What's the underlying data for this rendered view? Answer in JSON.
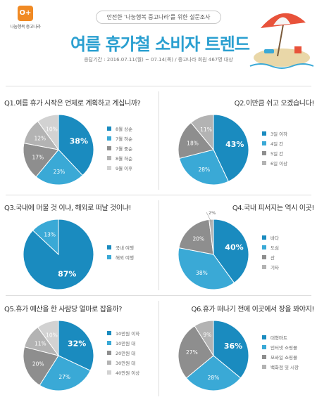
{
  "header": {
    "logo_text": "나눔행복 중고나라",
    "subtitle": "안전한 '나눔행복 중고나라'를 위한 설문조사",
    "title": "여름 휴가철 소비자 트렌드",
    "survey_info": "응답기간 : 2016.07.11(월) ~ 07.14(목) / 중고나라 회원 467명 대상"
  },
  "colors": {
    "c1": "#1a8bbf",
    "c2": "#3aa9d6",
    "c3": "#8e8e8e",
    "c4": "#b3b3b3",
    "c5": "#d2d2d2",
    "title_blue": "#2a9fd0"
  },
  "chart_data": [
    {
      "type": "pie",
      "title": "Q1.여름 휴가 시작은 언제로 계획하고 계십니까?",
      "categories": [
        "8월 상순",
        "7월 하순",
        "7월 중순",
        "8월 하순",
        "9월 이후"
      ],
      "values": [
        38,
        23,
        17,
        12,
        10
      ],
      "labels": [
        "38%",
        "23%",
        "17%",
        "12%",
        "10%"
      ]
    },
    {
      "type": "pie",
      "title": "Q2.이만큼 쉬고 오겠습니다!",
      "categories": [
        "3일 이하",
        "4일 간",
        "5일 간",
        "6일 이상"
      ],
      "values": [
        43,
        28,
        18,
        11
      ],
      "labels": [
        "43%",
        "28%",
        "18%",
        "11%"
      ]
    },
    {
      "type": "pie",
      "title": "Q3.국내에 머물 것 이냐, 해외로 떠날 것이냐!",
      "categories": [
        "국내 여행",
        "해외 여행"
      ],
      "values": [
        87,
        13
      ],
      "labels": [
        "87%",
        "13%"
      ]
    },
    {
      "type": "pie",
      "title": "Q4.국내 피서지는 역시 이곳!",
      "categories": [
        "바다",
        "도심",
        "산",
        "기타"
      ],
      "values": [
        40,
        38,
        20,
        2
      ],
      "labels": [
        "40%",
        "38%",
        "20%",
        "2%"
      ]
    },
    {
      "type": "pie",
      "title": "Q5.휴가 예산을 한 사람당 얼마로 잡을까?",
      "categories": [
        "10만원 이하",
        "10만원 대",
        "20만원 대",
        "30만원 대",
        "40만원 이상"
      ],
      "values": [
        32,
        27,
        20,
        11,
        10
      ],
      "labels": [
        "32%",
        "27%",
        "20%",
        "11%",
        "10%"
      ]
    },
    {
      "type": "pie",
      "title": "Q6.휴가 떠나기 전에 이곳에서 장을 봐야지!",
      "categories": [
        "대형마트",
        "인터넷 쇼핑몰",
        "모바일 쇼핑몰",
        "백화점 및 시장"
      ],
      "values": [
        36,
        28,
        27,
        9
      ],
      "labels": [
        "36%",
        "28%",
        "27%",
        "9%"
      ]
    }
  ]
}
